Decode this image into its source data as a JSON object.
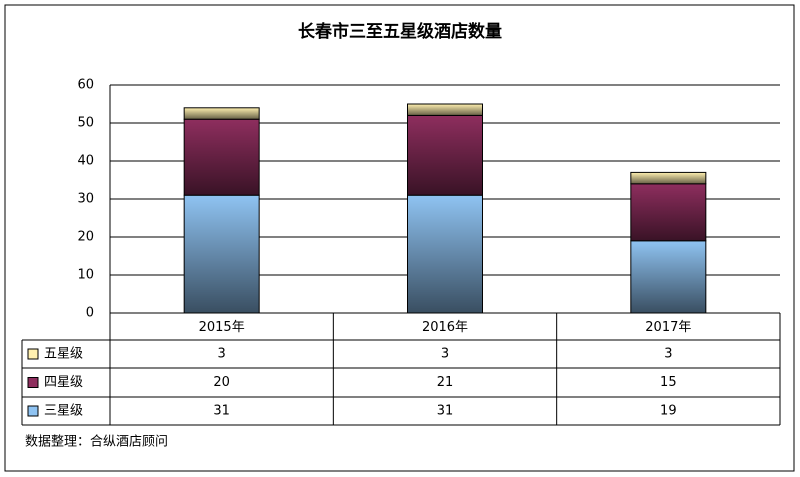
{
  "chart_data": {
    "type": "stacked_bar",
    "title": "长春市三至五星级酒店数量",
    "categories": [
      "2015年",
      "2016年",
      "2017年"
    ],
    "series": [
      {
        "name": "三星级",
        "color": "#8fc3f2",
        "values": [
          31,
          31,
          19
        ]
      },
      {
        "name": "四星级",
        "color": "#8e2e5e",
        "values": [
          20,
          21,
          15
        ]
      },
      {
        "name": "五星级",
        "color": "#fff0b0",
        "values": [
          3,
          3,
          3
        ]
      }
    ],
    "ylim": [
      0,
      60
    ],
    "yticks": [
      0,
      10,
      20,
      30,
      40,
      50,
      60
    ],
    "grid": true,
    "source": "数据整理：合纵酒店顾问"
  }
}
